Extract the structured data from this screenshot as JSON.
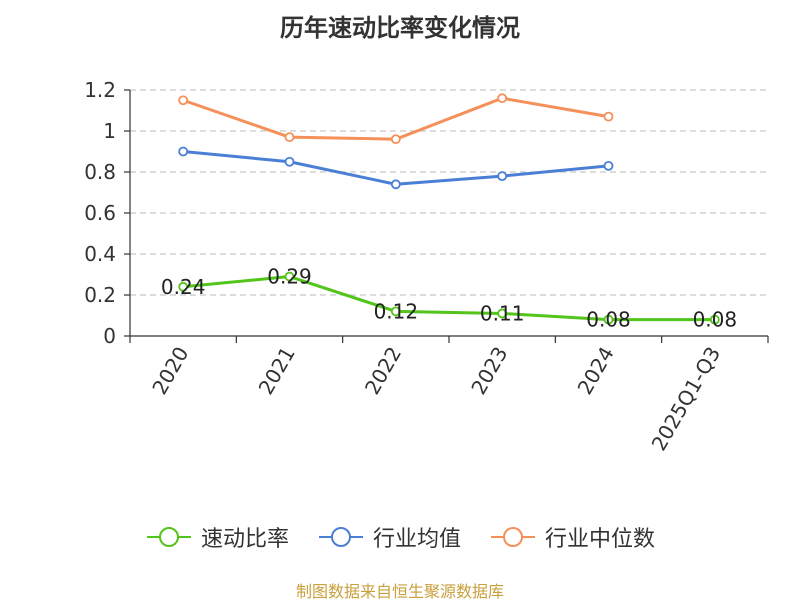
{
  "chart_data": {
    "type": "line",
    "title": "历年速动比率变化情况",
    "categories": [
      "2020",
      "2021",
      "2022",
      "2023",
      "2024",
      "2025Q1-Q3"
    ],
    "ylim": [
      0,
      1.2
    ],
    "yticks": [
      "0",
      "0.2",
      "0.4",
      "0.6",
      "0.8",
      "1",
      "1.2"
    ],
    "grid": true,
    "legend_position": "bottom",
    "series": [
      {
        "name": "速动比率",
        "color": "#52c41a",
        "values": [
          0.24,
          0.29,
          0.12,
          0.11,
          0.08,
          0.08
        ],
        "labels": [
          "0.24",
          "0.29",
          "0.12",
          "0.11",
          "0.08",
          "0.08"
        ]
      },
      {
        "name": "行业均值",
        "color": "#4a7fd6",
        "values": [
          0.9,
          0.85,
          0.74,
          0.78,
          0.83,
          null
        ]
      },
      {
        "name": "行业中位数",
        "color": "#f5905a",
        "values": [
          1.15,
          0.97,
          0.96,
          1.16,
          1.07,
          null
        ]
      }
    ],
    "source": "制图数据来自恒生聚源数据库"
  }
}
